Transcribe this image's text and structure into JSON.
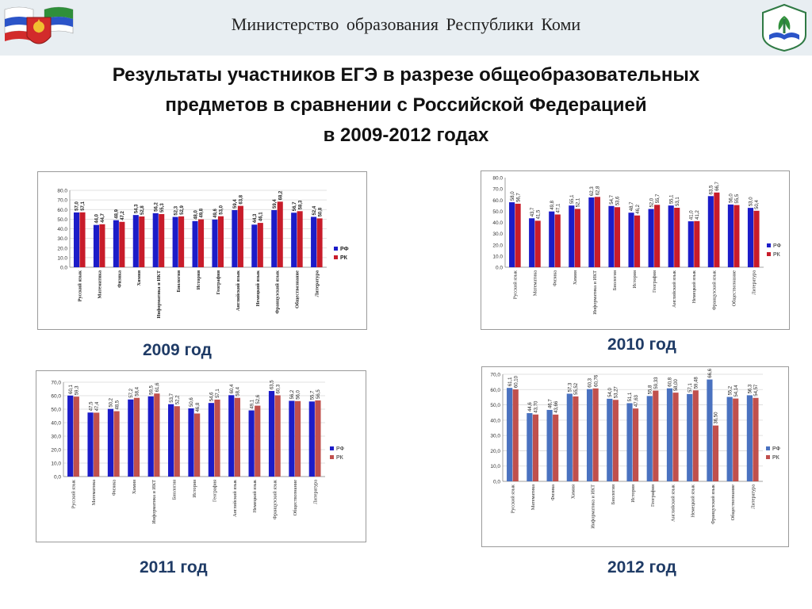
{
  "header": {
    "ministry": "Министерство   образования  Республики   Коми",
    "title_lines": [
      "Результаты участников ЕГЭ в разрезе общеобразовательных",
      "предметов в сравнении с Российской Федерацией",
      "в 2009-2012 годах"
    ]
  },
  "colors": {
    "rf_bold": "#1c1cc8",
    "rk_bold": "#c81c2a",
    "rf_soft": "#4a72c0",
    "rk_soft": "#c0504d"
  },
  "chart_data": [
    {
      "type": "bar",
      "caption": "2009 год",
      "ylim": [
        0,
        80
      ],
      "yticks": [
        "0.0",
        "10.0",
        "20.0",
        "30.0",
        "40.0",
        "50.0",
        "60.0",
        "70.0",
        "80.0"
      ],
      "legend": "right",
      "categories": [
        "Русский язык",
        "Математика",
        "Физика",
        "Химия",
        "Информатика и ИКТ",
        "Биология",
        "История",
        "География",
        "Английский язык",
        "Немецкий язык",
        "Французский язык",
        "Обществознание",
        "Литература"
      ],
      "series": [
        {
          "name": "РФ",
          "values": [
            57.0,
            44.0,
            48.9,
            54.3,
            56.2,
            52.3,
            48.0,
            49.6,
            59.4,
            44.3,
            59.4,
            56.7,
            52.4
          ],
          "labels": [
            "57,0",
            "44,0",
            "48,9",
            "54,3",
            "56,2",
            "52,3",
            "48,0",
            "49,6",
            "59,4",
            "44,3",
            "59,4",
            "56,7",
            "52,4"
          ]
        },
        {
          "name": "РК",
          "values": [
            57.1,
            44.7,
            47.2,
            52.8,
            55.3,
            52.9,
            49.8,
            53.0,
            63.8,
            46.1,
            68.2,
            58.3,
            50.8
          ],
          "labels": [
            "57,1",
            "44,7",
            "47,2",
            "52,8",
            "55,3",
            "52,9",
            "49,8",
            "53,0",
            "63,8",
            "46,1",
            "68,2",
            "58,3",
            "50,8"
          ]
        }
      ]
    },
    {
      "type": "bar",
      "caption": "2010 год",
      "ylim": [
        0,
        80
      ],
      "yticks": [
        "0.0",
        "10.0",
        "20.0",
        "30.0",
        "40.0",
        "50.0",
        "60.0",
        "70.0",
        "80.0"
      ],
      "legend": "right",
      "categories": [
        "Русский язык",
        "Математика",
        "Физика",
        "Химия",
        "Информатика и ИКТ",
        "Биология",
        "История",
        "География",
        "Английский язык",
        "Немецкий язык",
        "Французский язык",
        "Обществознание",
        "Литература"
      ],
      "series": [
        {
          "name": "РФ",
          "values": [
            58.0,
            43.7,
            49.8,
            55.1,
            62.3,
            54.7,
            48.7,
            52.0,
            55.1,
            41.0,
            63.5,
            56.0,
            53.0
          ],
          "labels": [
            "58,0",
            "43,7",
            "49,8",
            "55,1",
            "62,3",
            "54,7",
            "48,7",
            "52,0",
            "55,1",
            "41,0",
            "63,5",
            "56,0",
            "53,0"
          ]
        },
        {
          "name": "РК",
          "values": [
            56.7,
            41.5,
            47.1,
            52.1,
            62.8,
            53.6,
            46.2,
            55.7,
            53.1,
            41.2,
            66.7,
            55.5,
            50.4
          ],
          "labels": [
            "56,7",
            "41,5",
            "47,1",
            "52,1",
            "62,8",
            "53,6",
            "46,2",
            "55,7",
            "53,1",
            "41,2",
            "66,7",
            "55,5",
            "50,4"
          ]
        }
      ]
    },
    {
      "type": "bar",
      "caption": "2011 год",
      "ylim": [
        0,
        70
      ],
      "yticks": [
        "0,0",
        "10,0",
        "20,0",
        "30,0",
        "40,0",
        "50,0",
        "60,0",
        "70,0"
      ],
      "legend": "right",
      "categories": [
        "Русский язык",
        "Математика",
        "Физика",
        "Химия",
        "Информатика и ИКТ",
        "Биология",
        "История",
        "География",
        "Английский язык",
        "Немецкий язык",
        "Французский язык",
        "Обществознание",
        "Литература"
      ],
      "series": [
        {
          "name": "РФ",
          "values": [
            60.1,
            47.5,
            50.2,
            57.2,
            59.5,
            53.7,
            50.6,
            54.6,
            60.4,
            49.1,
            63.5,
            56.2,
            55.7
          ],
          "labels": [
            "60,1",
            "47,5",
            "50,2",
            "57,2",
            "59,5",
            "53,7",
            "50,6",
            "54,6",
            "60,4",
            "49,1",
            "63,5",
            "56,2",
            "55,7"
          ]
        },
        {
          "name": "РК",
          "values": [
            59.3,
            47.4,
            48.5,
            58.4,
            61.6,
            52.2,
            46.8,
            57.1,
            58.4,
            52.6,
            60.3,
            56.0,
            56.5
          ],
          "labels": [
            "59,3",
            "47,4",
            "48,5",
            "58,4",
            "61,6",
            "52,2",
            "46,8",
            "57,1",
            "58,4",
            "52,6",
            "60,3",
            "56,0",
            "56,5"
          ]
        }
      ]
    },
    {
      "type": "bar",
      "caption": "2012 год",
      "ylim": [
        0,
        70
      ],
      "yticks": [
        "0,0",
        "10,0",
        "20,0",
        "30,0",
        "40,0",
        "50,0",
        "60,0",
        "70,0"
      ],
      "legend": "right",
      "categories": [
        "Русский язык",
        "Математика",
        "Физика",
        "Химия",
        "Информатика и ИКТ",
        "Биология",
        "История",
        "География",
        "Английский язык",
        "Немецкий язык",
        "Французский язык",
        "Обществознание",
        "Литература"
      ],
      "series": [
        {
          "name": "РФ",
          "values": [
            61.1,
            44.6,
            46.7,
            57.3,
            60.3,
            54.0,
            51.1,
            55.8,
            60.8,
            57.1,
            66.6,
            55.2,
            56.3
          ],
          "labels": [
            "61,1",
            "44,6",
            "46,7",
            "57,3",
            "60,3",
            "54,0",
            "51,1",
            "55,8",
            "60,8",
            "57,1",
            "66,6",
            "55,2",
            "56,3"
          ]
        },
        {
          "name": "РК",
          "values": [
            60.1,
            43.7,
            43.66,
            55.52,
            60.76,
            53.27,
            47.63,
            59.33,
            58.0,
            59.48,
            36.5,
            54.14,
            54.57
          ],
          "labels": [
            "60,10",
            "43,70",
            "43,66",
            "55,52",
            "60,76",
            "53,27",
            "47,63",
            "59,33",
            "58,00",
            "59,48",
            "36,50",
            "54,14",
            "54,57"
          ]
        }
      ]
    }
  ]
}
